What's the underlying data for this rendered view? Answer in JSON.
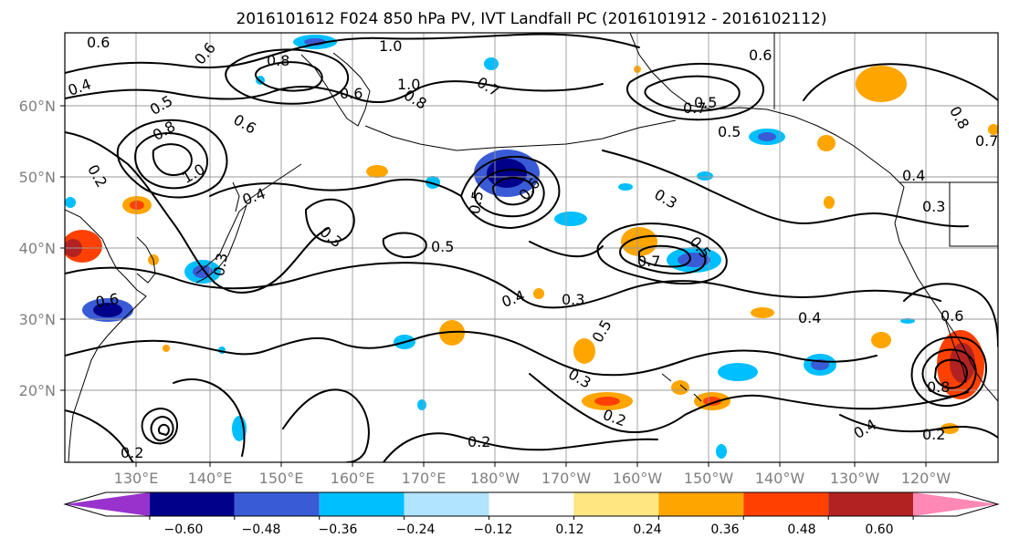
{
  "title": "2016101612 F024 850 hPa PV, IVT Landfall PC (2016101912 - 2016102112)",
  "lat_labels": [
    "60°N",
    "50°N",
    "40°N",
    "30°N",
    "20°N"
  ],
  "lon_labels": [
    "130°E",
    "140°E",
    "150°E",
    "160°E",
    "170°E",
    "180°W",
    "170°W",
    "160°W",
    "150°W",
    "140°W",
    "130°W",
    "120°W"
  ],
  "colorbar": {
    "colors": [
      "#9932cc",
      "#00008b",
      "#3a5bd6",
      "#00bfff",
      "#b0e4ff",
      "#ffffff",
      "#ffe680",
      "#ffa500",
      "#ff4000",
      "#b22222",
      "#ff88b5"
    ],
    "tick_labels": [
      "−0.60",
      "−0.48",
      "−0.36",
      "−0.24",
      "−0.12",
      "0.12",
      "0.24",
      "0.36",
      "0.48",
      "0.60"
    ]
  },
  "contour_labels": [
    "0.6",
    "1.0",
    "0.8",
    "0.6",
    "0.4",
    "0.5",
    "0.8",
    "1.0",
    "0.6",
    "0.7",
    "0.6",
    "0.5",
    "0.7",
    "1.0",
    "0.5",
    "0.6",
    "0.3",
    "0.8",
    "0.7",
    "0.4",
    "0.4",
    "0.2",
    "0.3",
    "0.5",
    "0.6",
    "0.5",
    "0.3",
    "0.4",
    "0.3",
    "0.5",
    "0.7",
    "0.5",
    "0.4",
    "0.6",
    "0.3",
    "0.2",
    "0.2",
    "0.2",
    "0.2",
    "0.8",
    "0.4",
    "0.3",
    "0.6",
    "0.8"
  ]
}
